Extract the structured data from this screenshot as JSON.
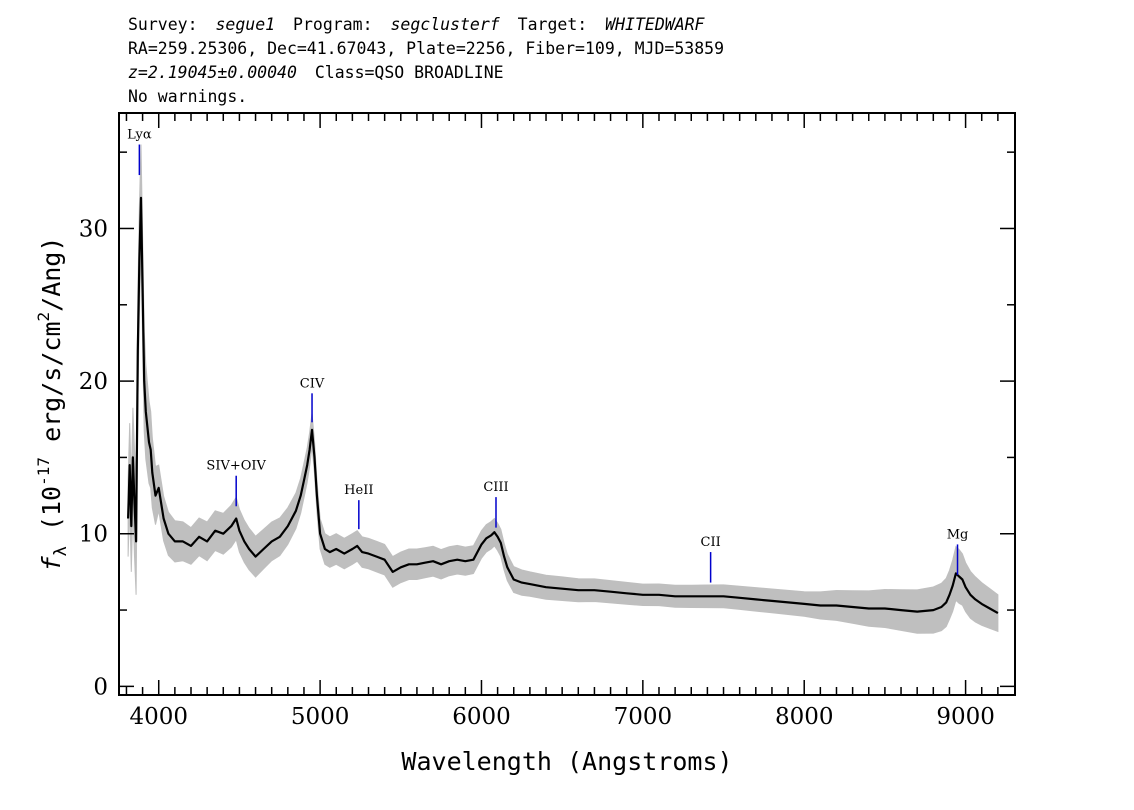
{
  "header": {
    "line1": {
      "survey_label": "Survey:",
      "survey": "segue1",
      "program_label": "Program:",
      "program": "segclusterf",
      "target_label": "Target:",
      "target": "WHITEDWARF"
    },
    "line2": "RA=259.25306, Dec=41.67043, Plate=2256, Fiber=109, MJD=53859",
    "line3": {
      "redshift": "z=2.19045±0.00040",
      "class": "Class=QSO BROADLINE"
    },
    "line4": "No warnings."
  },
  "chart_data": {
    "type": "line",
    "xlabel": "Wavelength (Angstroms)",
    "ylabel": "f_λ (10^-17 erg/s/cm²/Ang)",
    "xlim": [
      3760,
      9300
    ],
    "ylim": [
      -0.5,
      37.5
    ],
    "x_ticks": [
      4000,
      5000,
      6000,
      7000,
      8000,
      9000
    ],
    "y_ticks": [
      0,
      10,
      20,
      30
    ],
    "x_tick_labels": [
      "4000",
      "5000",
      "6000",
      "7000",
      "8000",
      "9000"
    ],
    "y_tick_labels": [
      "0",
      "10",
      "20",
      "30"
    ],
    "grid": false,
    "legend": "none",
    "series": [
      {
        "role": "flux",
        "color": "#000000",
        "x": [
          3810,
          3820,
          3830,
          3840,
          3850,
          3860,
          3870,
          3880,
          3890,
          3900,
          3910,
          3920,
          3930,
          3940,
          3950,
          3960,
          3980,
          4000,
          4030,
          4060,
          4100,
          4150,
          4200,
          4250,
          4300,
          4350,
          4400,
          4450,
          4480,
          4500,
          4530,
          4560,
          4600,
          4650,
          4700,
          4750,
          4800,
          4850,
          4880,
          4900,
          4920,
          4935,
          4950,
          4965,
          4980,
          5000,
          5030,
          5060,
          5100,
          5150,
          5200,
          5230,
          5260,
          5300,
          5350,
          5400,
          5450,
          5500,
          5550,
          5600,
          5650,
          5700,
          5750,
          5800,
          5850,
          5900,
          5950,
          6000,
          6030,
          6060,
          6080,
          6100,
          6120,
          6140,
          6160,
          6180,
          6200,
          6250,
          6300,
          6400,
          6500,
          6600,
          6700,
          6800,
          6900,
          7000,
          7100,
          7200,
          7300,
          7400,
          7500,
          7600,
          7700,
          7800,
          7900,
          8000,
          8100,
          8200,
          8300,
          8400,
          8500,
          8600,
          8700,
          8800,
          8850,
          8880,
          8900,
          8920,
          8940,
          8960,
          8980,
          9000,
          9030,
          9060,
          9100,
          9150,
          9200
        ],
        "y": [
          11,
          14.5,
          10.5,
          15,
          12,
          9.5,
          22,
          28,
          32,
          26,
          20,
          18,
          17,
          16,
          15.5,
          14,
          12.5,
          13,
          11,
          10,
          9.5,
          9.5,
          9.2,
          9.8,
          9.5,
          10.2,
          10,
          10.5,
          11,
          10.2,
          9.5,
          9,
          8.5,
          9,
          9.5,
          9.8,
          10.5,
          11.5,
          12.5,
          13.5,
          14.5,
          15.5,
          16.8,
          15,
          12.5,
          10,
          9,
          8.8,
          9,
          8.7,
          9,
          9.2,
          8.8,
          8.7,
          8.5,
          8.3,
          7.5,
          7.8,
          8,
          8,
          8.1,
          8.2,
          8,
          8.2,
          8.3,
          8.2,
          8.3,
          9.3,
          9.7,
          9.9,
          10.1,
          9.8,
          9.4,
          8.5,
          7.8,
          7.4,
          7,
          6.8,
          6.7,
          6.5,
          6.4,
          6.3,
          6.3,
          6.2,
          6.1,
          6,
          6,
          5.9,
          5.9,
          5.9,
          5.9,
          5.8,
          5.7,
          5.6,
          5.5,
          5.4,
          5.3,
          5.3,
          5.2,
          5.1,
          5.1,
          5,
          4.9,
          5,
          5.2,
          5.5,
          6,
          6.6,
          7.4,
          7.2,
          7,
          6.5,
          6,
          5.7,
          5.4,
          5.1,
          4.8
        ]
      },
      {
        "role": "error",
        "color": "#bfbfbf",
        "x": [
          3810,
          3850,
          3900,
          4000,
          4200,
          4500,
          4800,
          4950,
          5000,
          5300,
          5600,
          6000,
          6100,
          6300,
          7000,
          8000,
          8900,
          8950,
          9000,
          9200
        ],
        "y": [
          2.5,
          3.5,
          3.5,
          1.5,
          1.2,
          1.4,
          1.2,
          1.1,
          1.0,
          1.0,
          1.0,
          0.9,
          0.9,
          0.8,
          0.7,
          0.8,
          1.6,
          1.8,
          1.6,
          1.2
        ]
      }
    ],
    "annotations": [
      {
        "label": "Lyα",
        "x": 3880,
        "y_top": 35.5,
        "y_bottom": 33.5
      },
      {
        "label": "SIV+OIV",
        "x": 4480,
        "y_top": 13.8,
        "y_bottom": 11.8
      },
      {
        "label": "CIV",
        "x": 4950,
        "y_top": 19.2,
        "y_bottom": 17.3
      },
      {
        "label": "HeII",
        "x": 5240,
        "y_top": 12.2,
        "y_bottom": 10.3
      },
      {
        "label": "CIII",
        "x": 6090,
        "y_top": 12.4,
        "y_bottom": 10.4
      },
      {
        "label": "CII",
        "x": 7420,
        "y_top": 8.8,
        "y_bottom": 6.8
      },
      {
        "label": "Mg",
        "x": 8950,
        "y_top": 9.3,
        "y_bottom": 7.3
      }
    ],
    "annotation_color": "#0000cc"
  }
}
